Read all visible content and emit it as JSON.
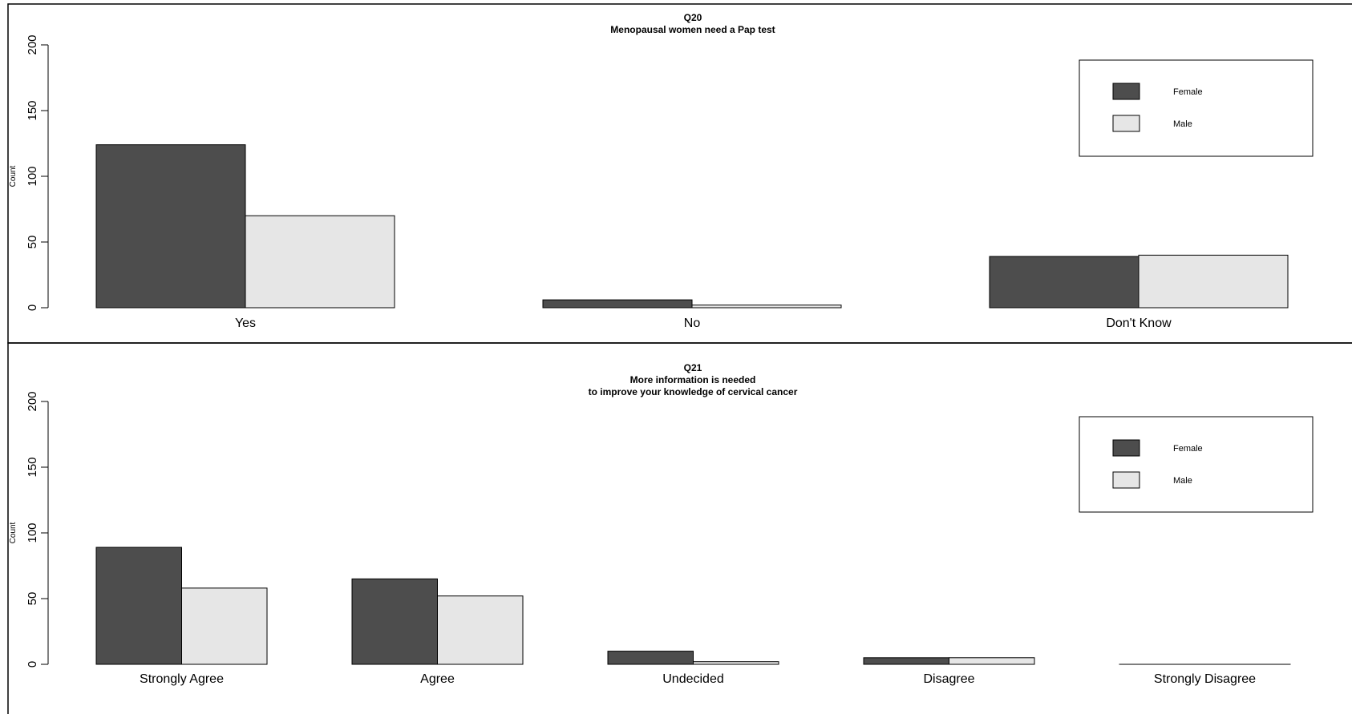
{
  "colors": {
    "female": "#4d4d4d",
    "male": "#e6e6e6",
    "stroke": "#000000"
  },
  "chart_data": [
    {
      "type": "bar",
      "title": "Q20",
      "subtitle": [
        "Menopausal women need a Pap test"
      ],
      "ylabel": "Count",
      "xlabel": "",
      "ylim": [
        0,
        200
      ],
      "yticks": [
        "0",
        "50",
        "100",
        "150",
        "200"
      ],
      "categories": [
        "Yes",
        "No",
        "Don't Know"
      ],
      "series": [
        {
          "name": "Female",
          "values": [
            124,
            6,
            39
          ]
        },
        {
          "name": "Male",
          "values": [
            70,
            2,
            40
          ]
        }
      ],
      "legend": {
        "position": "top-right",
        "entries": [
          "Female",
          "Male"
        ]
      },
      "grid": false
    },
    {
      "type": "bar",
      "title": "Q21",
      "subtitle": [
        "More information is needed",
        "to improve your knowledge of cervical cancer"
      ],
      "ylabel": "Count",
      "xlabel": "",
      "ylim": [
        0,
        200
      ],
      "yticks": [
        "0",
        "50",
        "100",
        "150",
        "200"
      ],
      "categories": [
        "Strongly Agree",
        "Agree",
        "Undecided",
        "Disagree",
        "Strongly Disagree"
      ],
      "series": [
        {
          "name": "Female",
          "values": [
            89,
            65,
            10,
            5,
            0
          ]
        },
        {
          "name": "Male",
          "values": [
            58,
            52,
            2,
            5,
            0
          ]
        }
      ],
      "legend": {
        "position": "top-right",
        "entries": [
          "Female",
          "Male"
        ]
      },
      "grid": false
    }
  ]
}
